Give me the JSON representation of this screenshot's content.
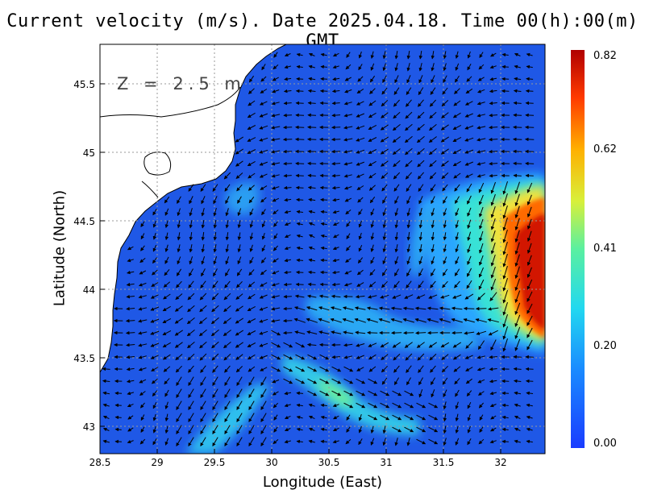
{
  "title": "Current velocity (m/s). Date 2025.04.18. Time 00(h):00(m) GMT",
  "depth_label": "Z = 2.5 m",
  "xlabel": "Longitude (East)",
  "ylabel": "Latitude (North)",
  "map": {
    "lon_range": [
      28.5,
      32.4
    ],
    "lat_range": [
      42.8,
      45.78
    ],
    "x_ticks": [
      "28.5",
      "29",
      "29.5",
      "30",
      "30.5",
      "31",
      "31.5",
      "32"
    ],
    "y_ticks": [
      "43",
      "43.5",
      "44",
      "44.5",
      "45",
      "45.5"
    ],
    "gridlines": true,
    "land_color": "#ffffff",
    "low_speed_color": "#1f58e6"
  },
  "colorbar": {
    "labels": [
      "0.82",
      "0.62",
      "0.41",
      "0.20",
      "0.00"
    ],
    "min": 0.0,
    "max": 0.82,
    "colors": [
      "#1a3cff",
      "#1aa0ff",
      "#22e6e6",
      "#55f0a0",
      "#d8f03a",
      "#ffb000",
      "#ff4a00",
      "#b80000"
    ]
  }
}
